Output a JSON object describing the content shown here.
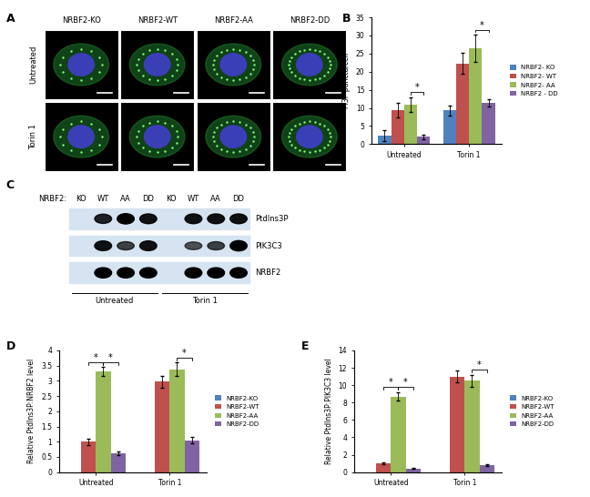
{
  "panel_a": {
    "panel_label": "A",
    "columns": [
      "NRBF2-KO",
      "NRBF2-WT",
      "NRBF2-AA",
      "NRBF2-DD"
    ],
    "rows": [
      "Untreated",
      "Torin 1"
    ]
  },
  "panel_c": {
    "panel_label": "C",
    "lane_prefix": "NRBF2:",
    "lanes": [
      "KO",
      "WT",
      "AA",
      "DD",
      "KO",
      "WT",
      "AA",
      "DD"
    ],
    "groups": [
      {
        "label": "Untreated",
        "lanes": 4
      },
      {
        "label": "Torin 1",
        "lanes": 4
      }
    ],
    "rows": [
      {
        "name": "PtdIns3P",
        "band_intensity": [
          0,
          0.8,
          1.0,
          0.9,
          0,
          0.9,
          0.9,
          0.9
        ]
      },
      {
        "name": "PIK3C3",
        "band_intensity": [
          0,
          0.9,
          0.6,
          0.9,
          0,
          0.5,
          0.6,
          1.0
        ]
      },
      {
        "name": "NRBF2",
        "band_intensity": [
          0,
          1.0,
          1.0,
          1.0,
          0,
          1.0,
          1.0,
          1.0
        ]
      }
    ]
  },
  "chart_data": [
    {
      "panel_label": "B",
      "type": "bar",
      "y_label": "PI3P puncta/cell",
      "categories": [
        "Untreated",
        "Torin 1"
      ],
      "series": [
        {
          "name": "NRBF2- KO",
          "color": "#4F81BD",
          "values": [
            2.3,
            9.3
          ],
          "errors": [
            1.5,
            1.3
          ]
        },
        {
          "name": "NRBF2- WT",
          "color": "#C0504D",
          "values": [
            9.3,
            22.3
          ],
          "errors": [
            2.0,
            2.8
          ]
        },
        {
          "name": "NRBF2- AA",
          "color": "#9BBB59",
          "values": [
            11.0,
            26.4
          ],
          "errors": [
            2.0,
            3.8
          ]
        },
        {
          "name": "NRBF2 - DD",
          "color": "#8064A2",
          "values": [
            2.0,
            11.3
          ],
          "errors": [
            0.7,
            1.0
          ]
        }
      ],
      "significance": [
        {
          "category": "Untreated",
          "from": "NRBF2- AA",
          "to": "NRBF2 - DD",
          "label": "*"
        },
        {
          "category": "Torin 1",
          "from": "NRBF2- AA",
          "to": "NRBF2 - DD",
          "label": "*"
        }
      ],
      "ylim": [
        0,
        35
      ],
      "yticks": [
        0,
        5,
        10,
        15,
        20,
        25,
        30,
        35
      ],
      "grid": false,
      "legend": "right"
    },
    {
      "panel_label": "D",
      "type": "bar",
      "y_label": "Relative PtdIns3P:NRBF2 level",
      "categories": [
        "Untreated",
        "Torin 1"
      ],
      "series": [
        {
          "name": "NRBF2-KO",
          "color": "#4F81BD",
          "values": [
            null,
            null
          ],
          "errors": [
            null,
            null
          ]
        },
        {
          "name": "NRBF2-WT",
          "color": "#C0504D",
          "values": [
            1.0,
            2.97
          ],
          "errors": [
            0.1,
            0.2
          ]
        },
        {
          "name": "NRBF2-AA",
          "color": "#9BBB59",
          "values": [
            3.3,
            3.38
          ],
          "errors": [
            0.15,
            0.22
          ]
        },
        {
          "name": "NRBF2-DD",
          "color": "#8064A2",
          "values": [
            0.62,
            1.05
          ],
          "errors": [
            0.05,
            0.1
          ]
        }
      ],
      "significance": [
        {
          "category": "Untreated",
          "from": "NRBF2-WT",
          "to": "NRBF2-AA",
          "label": "*"
        },
        {
          "category": "Untreated",
          "from": "NRBF2-AA",
          "to": "NRBF2-DD",
          "label": "*"
        },
        {
          "category": "Torin 1",
          "from": "NRBF2-AA",
          "to": "NRBF2-DD",
          "label": "*"
        }
      ],
      "ylim": [
        0,
        4
      ],
      "yticks": [
        0,
        0.5,
        1,
        1.5,
        2,
        2.5,
        3,
        3.5,
        4
      ],
      "grid": false,
      "legend": "right"
    },
    {
      "panel_label": "E",
      "type": "bar",
      "y_label": "Relative PtdIns3P:PIK3C3 level",
      "categories": [
        "Untreated",
        "Torin 1"
      ],
      "series": [
        {
          "name": "NRBF2-KO",
          "color": "#4F81BD",
          "values": [
            null,
            null
          ],
          "errors": [
            null,
            null
          ]
        },
        {
          "name": "NRBF2-WT",
          "color": "#C0504D",
          "values": [
            1.0,
            11.0
          ],
          "errors": [
            0.1,
            0.7
          ]
        },
        {
          "name": "NRBF2-AA",
          "color": "#9BBB59",
          "values": [
            8.7,
            10.5
          ],
          "errors": [
            0.5,
            0.7
          ]
        },
        {
          "name": "NRBF2-DD",
          "color": "#8064A2",
          "values": [
            0.4,
            0.8
          ],
          "errors": [
            0.05,
            0.1
          ]
        }
      ],
      "significance": [
        {
          "category": "Untreated",
          "from": "NRBF2-WT",
          "to": "NRBF2-AA",
          "label": "*"
        },
        {
          "category": "Untreated",
          "from": "NRBF2-AA",
          "to": "NRBF2-DD",
          "label": "*"
        },
        {
          "category": "Torin 1",
          "from": "NRBF2-AA",
          "to": "NRBF2-DD",
          "label": "*"
        }
      ],
      "ylim": [
        0,
        14
      ],
      "yticks": [
        0,
        2,
        4,
        6,
        8,
        10,
        12,
        14
      ],
      "grid": false,
      "legend": "right"
    }
  ]
}
